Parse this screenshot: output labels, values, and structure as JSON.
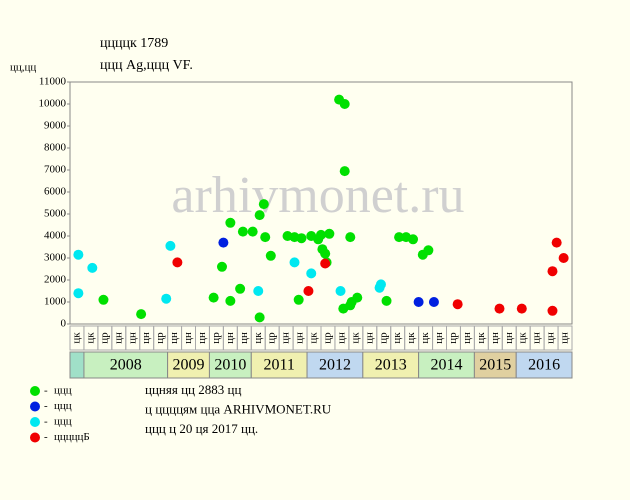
{
  "chart_data": {
    "type": "scatter",
    "title": "ццццк 1789",
    "subtitle": "ццц Ag,ццц VF.",
    "y_label": "цц,цц",
    "watermark": "arhivmonet.ru",
    "ylim": [
      0,
      11000
    ],
    "yticks": [
      0,
      1000,
      2000,
      3000,
      4000,
      5000,
      6000,
      7000,
      8000,
      9000,
      10000,
      11000
    ],
    "xlim": [
      0,
      36
    ],
    "categories": [
      "цк",
      "цк",
      "цр",
      "цн",
      "цн",
      "цн",
      "цр",
      "цн",
      "цн",
      "цн",
      "цр",
      "цн",
      "цн",
      "цк",
      "цр",
      "цн",
      "цн",
      "цк",
      "цр",
      "цн",
      "цк",
      "цн",
      "цр",
      "цк",
      "цк",
      "цк",
      "цн",
      "цр",
      "цн",
      "цк",
      "цн",
      "цн",
      "цк",
      "цн",
      "цн",
      "цн"
    ],
    "years": [
      {
        "label": "2008",
        "span": [
          1,
          7
        ],
        "color": "#c8f0c0"
      },
      {
        "label": "2009",
        "span": [
          7,
          10
        ],
        "color": "#f0f0b0"
      },
      {
        "label": "2010",
        "span": [
          10,
          13
        ],
        "color": "#c8f0c0"
      },
      {
        "label": "2011",
        "span": [
          13,
          17
        ],
        "color": "#f0f0b0"
      },
      {
        "label": "2012",
        "span": [
          17,
          21
        ],
        "color": "#c0d8f0"
      },
      {
        "label": "2013",
        "span": [
          21,
          25
        ],
        "color": "#f0f0b0"
      },
      {
        "label": "2014",
        "span": [
          25,
          29
        ],
        "color": "#c8f0c0"
      },
      {
        "label": "2015",
        "span": [
          29,
          32
        ],
        "color": "#e0d0a0"
      },
      {
        "label": "2016",
        "span": [
          32,
          36
        ],
        "color": "#c0d8f0"
      }
    ],
    "series": [
      {
        "name": "ццц",
        "color": "#00e000",
        "x": [
          2.4,
          5.1,
          10.3,
          10.9,
          11.5,
          11.5,
          12.2,
          12.4,
          13.1,
          13.6,
          13.6,
          13.9,
          14.0,
          14.4,
          15.6,
          16.1,
          16.4,
          16.6,
          17.3,
          17.8,
          18.0,
          18.1,
          18.3,
          18.6,
          18.4,
          19.3,
          19.7,
          19.7,
          19.6,
          20.1,
          20.1,
          20.2,
          20.6,
          22.7,
          23.6,
          24.1,
          24.6,
          25.3,
          25.7
        ],
        "values": [
          1100,
          450,
          1200,
          2600,
          4600,
          1050,
          1600,
          4200,
          4200,
          300,
          4950,
          5450,
          3950,
          3100,
          4000,
          3950,
          1100,
          3900,
          4000,
          3850,
          4050,
          3400,
          3200,
          4100,
          2800,
          10200,
          10000,
          6950,
          700,
          3950,
          850,
          1000,
          1200,
          1050,
          3950,
          3950,
          3850,
          3150,
          3350
        ]
      },
      {
        "name": "ццц",
        "color": "#0020e0",
        "x": [
          11.0,
          25.0,
          26.1
        ],
        "values": [
          3700,
          1000,
          1000
        ]
      },
      {
        "name": "ццц",
        "color": "#00e8f0",
        "x": [
          0.6,
          0.6,
          1.6,
          6.9,
          7.2,
          13.5,
          16.1,
          17.3,
          19.4,
          22.2,
          22.3
        ],
        "values": [
          3150,
          1400,
          2550,
          1150,
          3550,
          1500,
          2800,
          2300,
          1500,
          1650,
          1800
        ]
      },
      {
        "name": "цццццБ",
        "color": "#f00000",
        "x": [
          7.7,
          17.1,
          18.3,
          27.8,
          30.8,
          32.4,
          34.6,
          34.6,
          34.9,
          35.4
        ],
        "values": [
          2800,
          1500,
          2750,
          900,
          700,
          700,
          600,
          2400,
          3700,
          3000
        ]
      }
    ],
    "notes": [
      "ццняя цц 2883 цц",
      "ц ццццям цца ARHIVMONET.RU",
      "ццц ц 20 ця 2017 цц."
    ]
  }
}
